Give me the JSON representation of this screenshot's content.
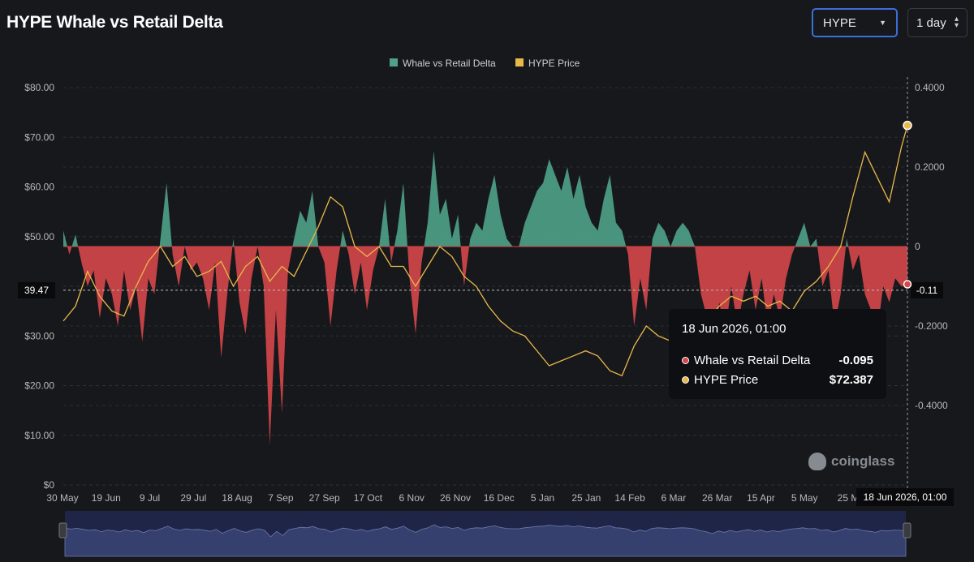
{
  "title": "HYPE Whale vs Retail Delta",
  "controls": {
    "coin": "HYPE",
    "interval": "1 day"
  },
  "tooltip": {
    "time": "18 Jun 2026, 01:00",
    "delta_label": "Whale vs Retail Delta",
    "delta_value": "-0.095",
    "price_label": "HYPE Price",
    "price_value": "$72.387"
  },
  "crosshair": {
    "price_label": "39.47",
    "delta_label": "-0.11",
    "time_label": "18 Jun 2026, 01:00"
  },
  "watermark": "coinglass",
  "colors": {
    "positive": "#4fa287",
    "negative": "#d5474b",
    "price": "#e8b94a",
    "background": "#17181c"
  },
  "chart_data": {
    "type": "area",
    "legend": {
      "position": "top-center",
      "items": [
        "Whale vs Retail Delta",
        "HYPE Price"
      ]
    },
    "x_tick_labels": [
      "30 May",
      "19 Jun",
      "9 Jul",
      "29 Jul",
      "18 Aug",
      "7 Sep",
      "27 Sep",
      "17 Oct",
      "6 Nov",
      "26 Nov",
      "16 Dec",
      "5 Jan",
      "25 Jan",
      "14 Feb",
      "6 Mar",
      "26 Mar",
      "15 Apr",
      "5 May",
      "25 M"
    ],
    "y_left": {
      "ticks": [
        "$0",
        "$10.00",
        "$20.00",
        "$30.00",
        "$40.00",
        "$50.00",
        "$60.00",
        "$70.00",
        "$80.00"
      ],
      "range": [
        0,
        80
      ],
      "label": ""
    },
    "y_right": {
      "ticks": [
        "-0.4000",
        "-0.2000",
        "0",
        "0.2000",
        "0.4000"
      ],
      "range": [
        -0.6,
        0.4
      ],
      "label": ""
    },
    "grid": true,
    "series": [
      {
        "name": "Whale vs Retail Delta",
        "axis": "right",
        "points": [
          [
            0,
            0.04
          ],
          [
            2,
            -0.02
          ],
          [
            4,
            0.03
          ],
          [
            6,
            -0.04
          ],
          [
            8,
            -0.1
          ],
          [
            10,
            -0.06
          ],
          [
            12,
            -0.18
          ],
          [
            14,
            -0.08
          ],
          [
            16,
            -0.12
          ],
          [
            18,
            -0.2
          ],
          [
            20,
            -0.06
          ],
          [
            22,
            -0.16
          ],
          [
            24,
            -0.1
          ],
          [
            26,
            -0.24
          ],
          [
            28,
            -0.08
          ],
          [
            30,
            -0.12
          ],
          [
            32,
            0.02
          ],
          [
            34,
            0.16
          ],
          [
            36,
            -0.02
          ],
          [
            38,
            -0.1
          ],
          [
            40,
            0.0
          ],
          [
            42,
            -0.06
          ],
          [
            44,
            -0.04
          ],
          [
            46,
            -0.08
          ],
          [
            48,
            -0.16
          ],
          [
            50,
            -0.04
          ],
          [
            52,
            -0.28
          ],
          [
            54,
            -0.12
          ],
          [
            56,
            0.02
          ],
          [
            58,
            -0.14
          ],
          [
            60,
            -0.22
          ],
          [
            62,
            -0.08
          ],
          [
            64,
            0.0
          ],
          [
            66,
            -0.1
          ],
          [
            68,
            -0.5
          ],
          [
            70,
            -0.16
          ],
          [
            72,
            -0.42
          ],
          [
            74,
            -0.06
          ],
          [
            76,
            0.02
          ],
          [
            78,
            0.09
          ],
          [
            80,
            0.06
          ],
          [
            82,
            0.14
          ],
          [
            84,
            0.0
          ],
          [
            86,
            -0.04
          ],
          [
            88,
            -0.2
          ],
          [
            90,
            -0.06
          ],
          [
            92,
            0.04
          ],
          [
            94,
            -0.02
          ],
          [
            96,
            -0.12
          ],
          [
            98,
            -0.04
          ],
          [
            100,
            -0.16
          ],
          [
            102,
            -0.06
          ],
          [
            104,
            0.0
          ],
          [
            106,
            0.12
          ],
          [
            108,
            -0.04
          ],
          [
            110,
            0.04
          ],
          [
            112,
            0.16
          ],
          [
            114,
            -0.08
          ],
          [
            116,
            -0.22
          ],
          [
            118,
            -0.04
          ],
          [
            120,
            0.06
          ],
          [
            122,
            0.24
          ],
          [
            124,
            0.08
          ],
          [
            126,
            0.12
          ],
          [
            128,
            0.02
          ],
          [
            130,
            0.08
          ],
          [
            132,
            -0.1
          ],
          [
            134,
            0.02
          ],
          [
            136,
            0.06
          ],
          [
            138,
            0.04
          ],
          [
            140,
            0.12
          ],
          [
            142,
            0.18
          ],
          [
            144,
            0.08
          ],
          [
            146,
            0.02
          ],
          [
            148,
            0.0
          ],
          [
            150,
            0.0
          ],
          [
            152,
            0.06
          ],
          [
            154,
            0.1
          ],
          [
            156,
            0.14
          ],
          [
            158,
            0.16
          ],
          [
            160,
            0.22
          ],
          [
            162,
            0.18
          ],
          [
            164,
            0.14
          ],
          [
            166,
            0.2
          ],
          [
            168,
            0.12
          ],
          [
            170,
            0.18
          ],
          [
            172,
            0.1
          ],
          [
            174,
            0.06
          ],
          [
            176,
            0.04
          ],
          [
            178,
            0.12
          ],
          [
            180,
            0.18
          ],
          [
            182,
            0.06
          ],
          [
            184,
            0.04
          ],
          [
            186,
            -0.02
          ],
          [
            188,
            -0.2
          ],
          [
            190,
            -0.08
          ],
          [
            192,
            -0.16
          ],
          [
            194,
            0.02
          ],
          [
            196,
            0.06
          ],
          [
            198,
            0.04
          ],
          [
            200,
            0.0
          ],
          [
            202,
            0.04
          ],
          [
            204,
            0.06
          ],
          [
            206,
            0.04
          ],
          [
            208,
            0.0
          ],
          [
            210,
            -0.12
          ],
          [
            212,
            -0.18
          ],
          [
            214,
            -0.3
          ],
          [
            216,
            -0.14
          ],
          [
            218,
            -0.22
          ],
          [
            220,
            -0.1
          ],
          [
            222,
            -0.2
          ],
          [
            224,
            -0.12
          ],
          [
            226,
            -0.06
          ],
          [
            228,
            -0.16
          ],
          [
            230,
            -0.08
          ],
          [
            232,
            -0.2
          ],
          [
            234,
            -0.12
          ],
          [
            236,
            -0.18
          ],
          [
            238,
            -0.08
          ],
          [
            240,
            -0.02
          ],
          [
            242,
            0.02
          ],
          [
            244,
            0.06
          ],
          [
            246,
            0.0
          ],
          [
            248,
            0.02
          ],
          [
            250,
            -0.1
          ],
          [
            252,
            -0.06
          ],
          [
            254,
            -0.2
          ],
          [
            256,
            -0.12
          ],
          [
            258,
            0.02
          ],
          [
            260,
            -0.06
          ],
          [
            262,
            -0.02
          ],
          [
            264,
            -0.12
          ],
          [
            266,
            -0.16
          ],
          [
            268,
            -0.22
          ],
          [
            270,
            -0.1
          ],
          [
            272,
            -0.14
          ],
          [
            274,
            -0.08
          ],
          [
            276,
            -0.1
          ],
          [
            278,
            -0.095
          ]
        ]
      },
      {
        "name": "HYPE Price",
        "axis": "left",
        "points": [
          [
            0,
            33
          ],
          [
            4,
            36
          ],
          [
            8,
            43
          ],
          [
            12,
            38
          ],
          [
            16,
            35
          ],
          [
            20,
            34
          ],
          [
            24,
            40
          ],
          [
            28,
            45
          ],
          [
            32,
            48
          ],
          [
            36,
            44
          ],
          [
            40,
            46
          ],
          [
            44,
            42
          ],
          [
            48,
            43
          ],
          [
            52,
            45
          ],
          [
            56,
            40
          ],
          [
            60,
            44
          ],
          [
            64,
            46
          ],
          [
            68,
            41
          ],
          [
            72,
            44
          ],
          [
            76,
            42
          ],
          [
            80,
            47
          ],
          [
            84,
            52
          ],
          [
            88,
            58
          ],
          [
            92,
            56
          ],
          [
            96,
            48
          ],
          [
            100,
            46
          ],
          [
            104,
            48
          ],
          [
            108,
            44
          ],
          [
            112,
            44
          ],
          [
            116,
            40
          ],
          [
            120,
            44
          ],
          [
            124,
            48
          ],
          [
            128,
            46
          ],
          [
            132,
            42
          ],
          [
            136,
            40
          ],
          [
            140,
            36
          ],
          [
            144,
            33
          ],
          [
            148,
            31
          ],
          [
            152,
            30
          ],
          [
            156,
            27
          ],
          [
            160,
            24
          ],
          [
            164,
            25
          ],
          [
            168,
            26
          ],
          [
            172,
            27
          ],
          [
            176,
            26
          ],
          [
            180,
            23
          ],
          [
            184,
            22
          ],
          [
            188,
            28
          ],
          [
            192,
            32
          ],
          [
            196,
            30
          ],
          [
            200,
            29
          ],
          [
            204,
            27
          ],
          [
            208,
            29
          ],
          [
            212,
            33
          ],
          [
            216,
            36
          ],
          [
            220,
            38
          ],
          [
            224,
            37
          ],
          [
            228,
            38
          ],
          [
            232,
            36
          ],
          [
            236,
            37
          ],
          [
            240,
            35
          ],
          [
            244,
            39
          ],
          [
            248,
            41
          ],
          [
            252,
            44
          ],
          [
            256,
            48
          ],
          [
            260,
            58
          ],
          [
            264,
            67
          ],
          [
            268,
            62
          ],
          [
            272,
            57
          ],
          [
            276,
            68
          ],
          [
            278,
            72.387
          ]
        ]
      }
    ]
  }
}
